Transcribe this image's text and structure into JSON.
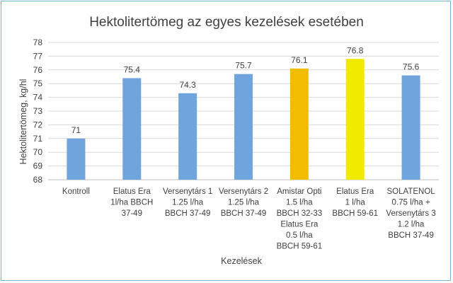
{
  "chart_data": {
    "type": "bar",
    "title": "Hektolitertömeg az egyes kezelések esetében",
    "xlabel": "Kezelések",
    "ylabel": "Hektolitertömeg, kg/hl",
    "ylim": [
      68,
      78
    ],
    "yticks": [
      68,
      69,
      70,
      71,
      72,
      73,
      74,
      75,
      76,
      77,
      78
    ],
    "grid": true,
    "legend": "none",
    "categories": [
      [
        "Kontroll"
      ],
      [
        "Elatus Era",
        "1l/ha BBCH",
        "37-49"
      ],
      [
        "Versenytárs 1",
        "1.25 l/ha",
        "BBCH 37-49"
      ],
      [
        "Versenytárs 2",
        "1.25 l/ha",
        "BBCH 37-49"
      ],
      [
        "Amistar Opti",
        "1.5 l/ha",
        "BBCH 32-33",
        "Elatus Era",
        "0.5 l/ha",
        "BBCH 59-61"
      ],
      [
        "Elatus Era",
        "1 l/ha",
        "BBCH 59-61"
      ],
      [
        "SOLATENOL",
        "0.75 l/ha +",
        "Versenytárs 3",
        "1.2 l/ha",
        "BBCH 37-49"
      ]
    ],
    "values": [
      71,
      75.4,
      74.3,
      75.7,
      76.1,
      76.8,
      75.6
    ],
    "value_labels": [
      "71",
      "75.4",
      "74.3",
      "75.7",
      "76.1",
      "76.8",
      "75.6"
    ],
    "bar_colors": [
      "#6fa4dc",
      "#6fa4dc",
      "#6fa4dc",
      "#6fa4dc",
      "#f2bd00",
      "#f0ea00",
      "#6fa4dc"
    ],
    "grid_color": "#d9d9d9",
    "frame_color": "#79b3cf"
  }
}
